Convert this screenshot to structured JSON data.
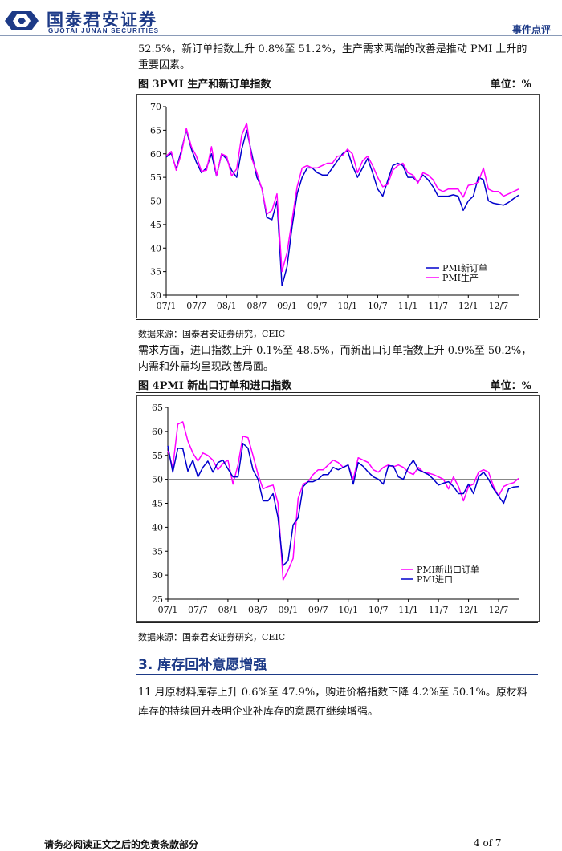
{
  "header": {
    "logo_cn": "国泰君安证券",
    "logo_en": "GUOTAI JUNAN SECURITIES",
    "section": "事件点评"
  },
  "intro_lines": [
    "52.5%，新订单指数上升 0.8%至 51.2%，生产需求两端的改善是推动 PMI 上升的",
    "重要因素。"
  ],
  "figure3": {
    "title": "图  3PMI 生产和新订单指数",
    "unit": "单位：%",
    "source": "数据来源：国泰君安证券研究，CEIC"
  },
  "demand_lines": [
    "需求方面，进口指数上升 0.1%至 48.5%，而新出口订单指数上升 0.9%至 50.2%，",
    "内需和外需均呈现改善局面。"
  ],
  "figure4": {
    "title": "图  4PMI 新出口订单和进口指数",
    "unit": "单位：%",
    "source": "数据来源：国泰君安证券研究，CEIC"
  },
  "section3": {
    "title": "3.  库存回补意愿增强",
    "lines": [
      "11 月原材料库存上升 0.6%至 47.9%，购进价格指数下降 4.2%至 50.1%。原材料",
      "库存的持续回升表明企业补库存的意愿在继续增强。"
    ]
  },
  "footer": {
    "disclaimer": "请务必阅读正文之后的免责条款部分",
    "page": "4 of 7"
  },
  "colors": {
    "brand": "#1d3a87",
    "series_blue": "#0000cc",
    "series_magenta": "#ff00ff"
  },
  "chart_data": [
    {
      "type": "line",
      "ylim": [
        30,
        70
      ],
      "yticks": [
        30,
        35,
        40,
        45,
        50,
        55,
        60,
        65,
        70
      ],
      "xtick_labels": [
        "07/1",
        "07/7",
        "08/1",
        "08/7",
        "09/1",
        "09/7",
        "10/1",
        "10/7",
        "11/1",
        "11/7",
        "12/1",
        "12/7"
      ],
      "reference_line": 50,
      "legend": "bottom-right",
      "series": [
        {
          "name": "PMI新订单",
          "color": "#0000cc",
          "values": [
            59.3,
            60.1,
            56.8,
            60.6,
            65.1,
            61.0,
            58.2,
            56.0,
            57.0,
            60.0,
            55.3,
            60.0,
            58.9,
            56.5,
            55.0,
            61.0,
            65.0,
            60.0,
            55.0,
            52.7,
            46.5,
            46.0,
            50.0,
            32.0,
            36.0,
            44.5,
            51.5,
            55.0,
            57.0,
            57.0,
            56.0,
            55.5,
            55.5,
            57.0,
            58.5,
            60.0,
            60.7,
            57.5,
            55.0,
            57.0,
            59.0,
            56.0,
            52.5,
            51.0,
            54.3,
            57.5,
            58.0,
            57.5,
            55.0,
            55.0,
            54.0,
            55.5,
            54.5,
            53.0,
            51.0,
            51.0,
            51.0,
            51.3,
            51.0,
            48.0,
            50.0,
            51.0,
            55.0,
            54.5,
            50.0,
            49.5,
            49.3,
            49.1,
            49.7,
            50.5,
            51.2
          ]
        },
        {
          "name": "PMI生产",
          "color": "#ff00ff",
          "values": [
            59.5,
            60.5,
            56.5,
            60.0,
            65.4,
            61.5,
            59.5,
            56.3,
            56.5,
            61.5,
            55.4,
            60.0,
            59.5,
            55.3,
            56.8,
            64.0,
            66.5,
            59.0,
            56.0,
            52.5,
            47.2,
            48.0,
            51.5,
            35.0,
            39.0,
            46.0,
            53.0,
            57.0,
            57.5,
            57.0,
            57.0,
            57.5,
            58.0,
            58.0,
            59.5,
            59.6,
            61.0,
            60.0,
            56.0,
            58.5,
            59.5,
            57.5,
            55.0,
            53.0,
            53.5,
            56.5,
            57.5,
            58.0,
            56.0,
            55.5,
            53.8,
            56.0,
            55.5,
            54.5,
            52.5,
            52.0,
            52.5,
            52.5,
            52.5,
            50.8,
            53.3,
            53.5,
            54.0,
            57.0,
            52.5,
            52.0,
            52.0,
            51.0,
            51.5,
            52.0,
            52.5
          ]
        }
      ]
    },
    {
      "type": "line",
      "ylim": [
        25,
        65
      ],
      "yticks": [
        25,
        30,
        35,
        40,
        45,
        50,
        55,
        60,
        65
      ],
      "xtick_labels": [
        "07/1",
        "07/7",
        "08/1",
        "08/7",
        "09/1",
        "09/7",
        "10/1",
        "10/7",
        "11/1",
        "11/7",
        "12/1",
        "12/7"
      ],
      "reference_line": 50,
      "legend": "bottom-right",
      "series": [
        {
          "name": "PMI新出口订单",
          "color": "#ff00ff",
          "values": [
            56.0,
            52.5,
            61.5,
            62.0,
            58.0,
            55.5,
            53.8,
            55.5,
            55.0,
            54.0,
            52.0,
            53.3,
            54.0,
            49.0,
            53.0,
            59.0,
            58.7,
            55.0,
            51.0,
            48.0,
            48.5,
            48.8,
            45.0,
            29.0,
            31.0,
            33.5,
            46.0,
            49.0,
            49.5,
            51.0,
            52.0,
            52.0,
            53.0,
            54.0,
            53.5,
            52.5,
            53.0,
            50.0,
            54.5,
            54.0,
            53.5,
            52.0,
            51.5,
            52.5,
            53.0,
            52.6,
            53.0,
            52.5,
            51.5,
            51.0,
            52.5,
            51.5,
            51.3,
            51.0,
            50.5,
            50.0,
            48.0,
            50.5,
            48.5,
            45.5,
            48.5,
            49.0,
            51.5,
            52.0,
            51.5,
            48.5,
            46.5,
            48.5,
            49.0,
            49.3,
            50.2
          ]
        },
        {
          "name": "PMI进口",
          "color": "#0000cc",
          "values": [
            57.0,
            51.5,
            56.5,
            56.4,
            51.7,
            54.0,
            50.5,
            52.5,
            53.8,
            51.5,
            53.5,
            54.0,
            52.2,
            50.5,
            50.5,
            57.5,
            56.5,
            52.0,
            50.0,
            45.5,
            45.5,
            47.0,
            42.0,
            32.0,
            33.0,
            40.5,
            42.0,
            48.5,
            49.5,
            49.5,
            50.0,
            51.0,
            51.0,
            52.5,
            52.0,
            52.5,
            53.0,
            49.0,
            53.5,
            52.7,
            51.5,
            50.5,
            50.0,
            49.0,
            52.8,
            52.8,
            50.5,
            50.0,
            52.5,
            54.0,
            52.0,
            51.5,
            51.0,
            50.0,
            48.8,
            49.2,
            49.5,
            48.5,
            47.0,
            47.0,
            49.0,
            47.0,
            50.5,
            51.5,
            50.0,
            48.0,
            46.5,
            45.0,
            48.0,
            48.4,
            48.5
          ]
        }
      ]
    }
  ]
}
